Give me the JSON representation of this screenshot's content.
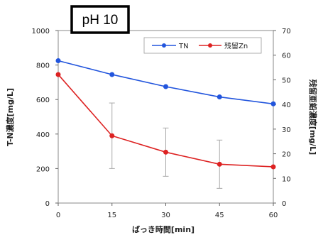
{
  "chart_data": {
    "type": "line",
    "label": "pH 10",
    "xlabel": "ばっき時間[min]",
    "ylabel_left": "T-N濃度[mg/L]",
    "ylabel_right": "残留亜鉛濃度[mg/L]",
    "x": [
      0,
      15,
      30,
      45,
      60
    ],
    "xlim": [
      0,
      60
    ],
    "ylim_left": [
      0,
      1000
    ],
    "ylim_right": [
      0,
      70
    ],
    "yticks_left": [
      0,
      200,
      400,
      600,
      800,
      1000
    ],
    "yticks_right": [
      0,
      10,
      20,
      30,
      40,
      50,
      60,
      70
    ],
    "legend_position": "top-right",
    "series": [
      {
        "name": "TN",
        "axis": "left",
        "color": "#2255dd",
        "values": [
          825,
          745,
          675,
          615,
          575
        ]
      },
      {
        "name": "残留Zn",
        "axis": "left",
        "color": "#dd2222",
        "values": [
          745,
          390,
          295,
          225,
          210
        ],
        "error": [
          0,
          190,
          140,
          140,
          0
        ]
      }
    ]
  }
}
